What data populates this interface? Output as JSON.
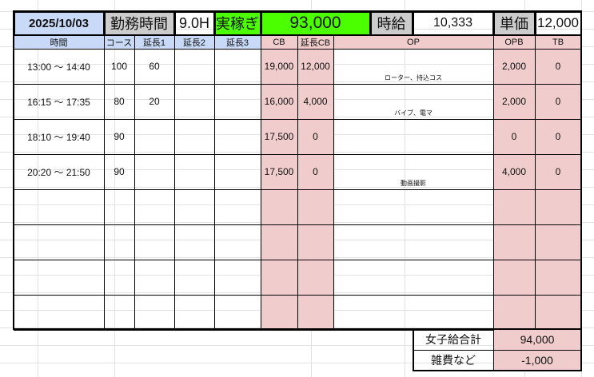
{
  "header": {
    "date": "2025/10/03",
    "work_hours_label": "勤務時間",
    "work_hours": "9.0H",
    "earnings_label": "実稼ぎ",
    "earnings": "93,000",
    "hourly_label": "時給",
    "hourly": "10,333",
    "unit_price_label": "単価",
    "unit_price": "12,000"
  },
  "columns": [
    "時間",
    "コース",
    "延長1",
    "延長2",
    "延長3",
    "CB",
    "延長CB",
    "OP",
    "OPB",
    "TB"
  ],
  "rows": [
    [
      "13:00 ～ 14:40",
      "100",
      "60",
      "",
      "",
      "19,000",
      "12,000",
      "ローター、持込コス",
      "2,000",
      "0"
    ],
    [
      "16:15 ～ 17:35",
      "80",
      "20",
      "",
      "",
      "16,000",
      "4,000",
      "バイブ、電マ",
      "2,000",
      "0"
    ],
    [
      "18:10 ～ 19:40",
      "90",
      "",
      "",
      "",
      "17,500",
      "0",
      "",
      "0",
      "0"
    ],
    [
      "20:20 ～ 21:50",
      "90",
      "",
      "",
      "",
      "17,500",
      "0",
      "動画撮影",
      "4,000",
      "0"
    ],
    [
      "",
      "",
      "",
      "",
      "",
      "",
      "",
      "",
      "",
      ""
    ],
    [
      "",
      "",
      "",
      "",
      "",
      "",
      "",
      "",
      "",
      ""
    ],
    [
      "",
      "",
      "",
      "",
      "",
      "",
      "",
      "",
      "",
      ""
    ],
    [
      "",
      "",
      "",
      "",
      "",
      "",
      "",
      "",
      "",
      ""
    ]
  ],
  "summary": {
    "girl_total_label": "女子給合計",
    "girl_total": "94,000",
    "expenses_label": "雑費など",
    "expenses": "-1,000"
  },
  "colors": {
    "header_blue": "#c9daf8",
    "gray": "#cccccc",
    "green": "#4cff00",
    "pink": "#f0cccc"
  }
}
